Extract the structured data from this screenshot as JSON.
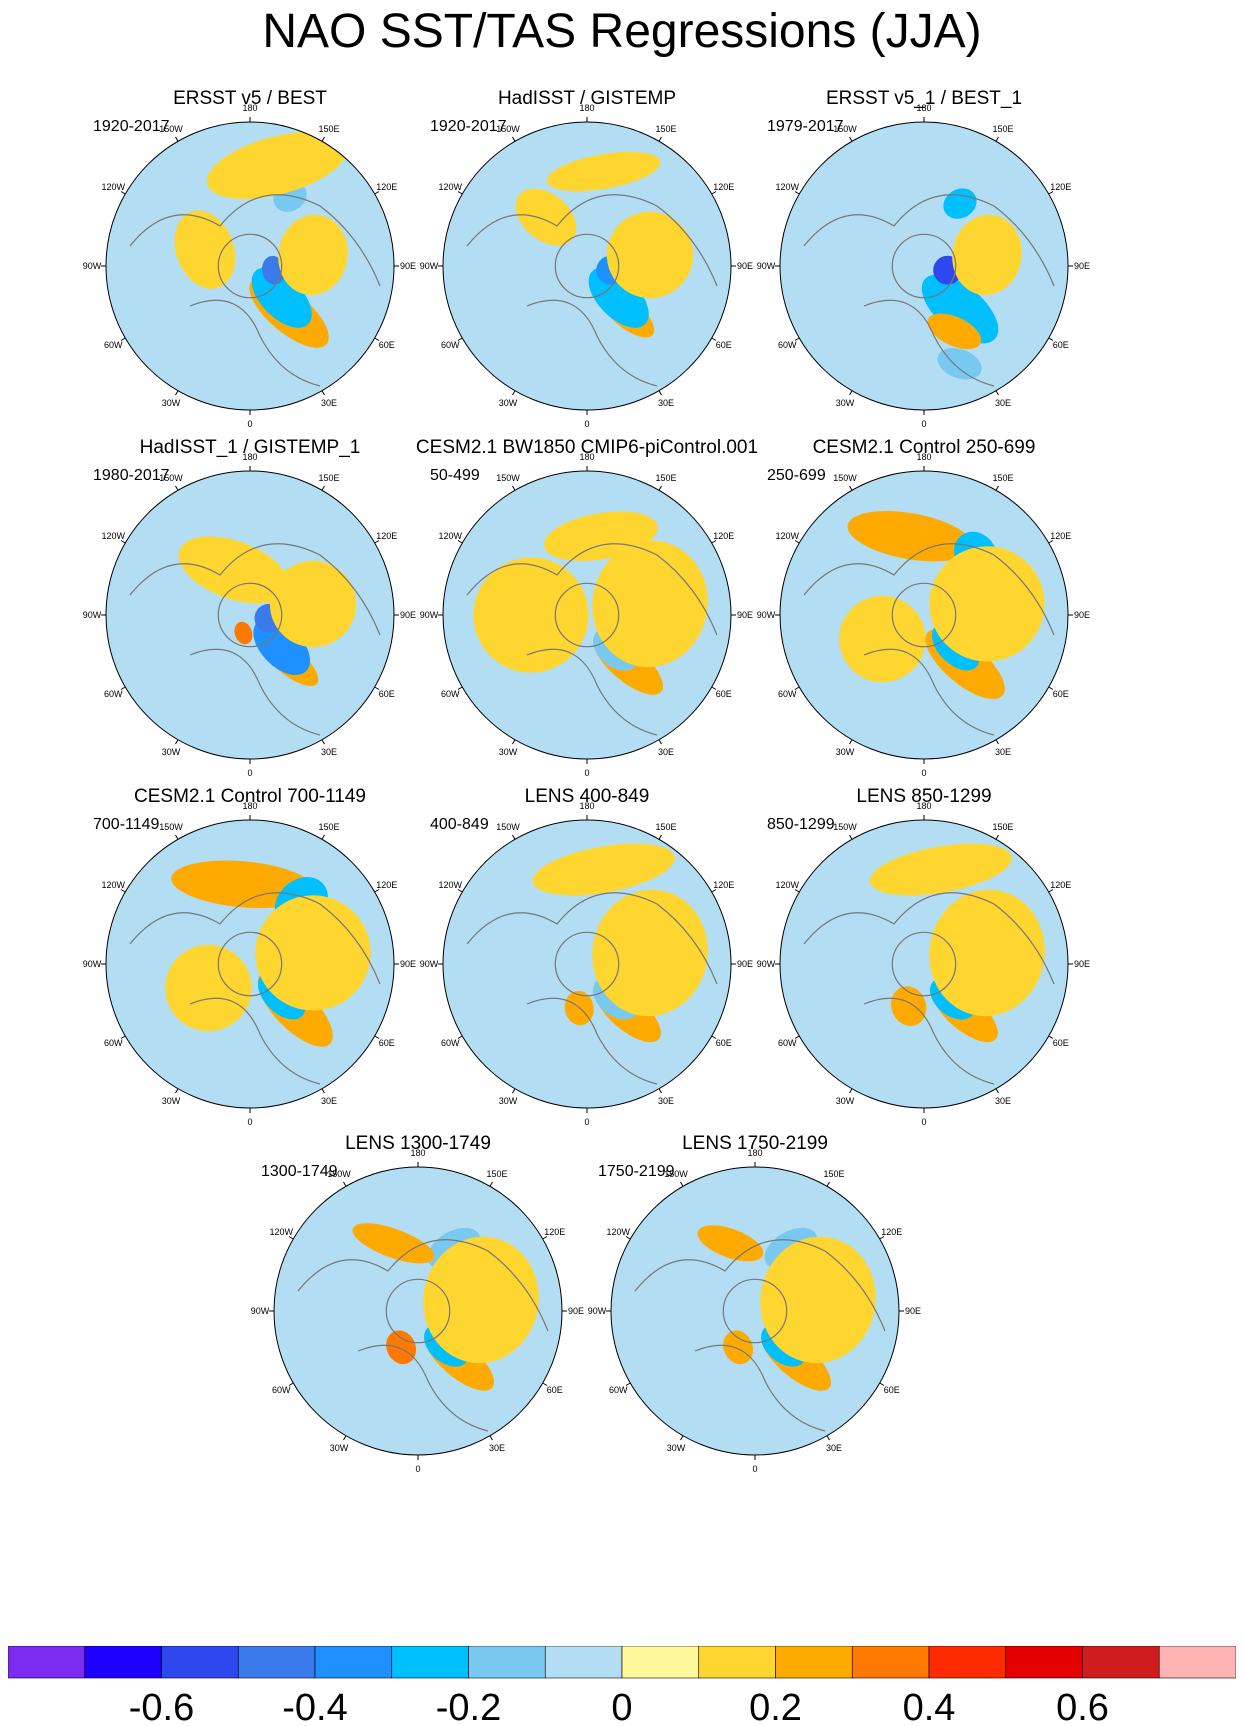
{
  "title": "NAO SST/TAS Regressions (JJA)",
  "chart_data": {
    "type": "heatmap",
    "projection": "north-polar-stereographic",
    "longitude_labels": [
      "180",
      "150E",
      "120E",
      "90E",
      "60E",
      "30E",
      "0",
      "30W",
      "60W",
      "90W",
      "120W",
      "150W"
    ],
    "panels": [
      {
        "title": "ERSST v5 / BEST",
        "period": "1920-2017",
        "features": [
          {
            "lon": -40,
            "lat": 52,
            "value": 0.2,
            "rx": 0.17,
            "ry": 0.07
          },
          {
            "lon": -45,
            "lat": 62,
            "value": -0.3,
            "rx": 0.13,
            "ry": 0.07
          },
          {
            "lon": -80,
            "lat": 75,
            "value": -0.5,
            "rx": 0.05,
            "ry": 0.04
          },
          {
            "lon": -150,
            "lat": 40,
            "value": -0.2,
            "rx": 0.06,
            "ry": 0.05
          },
          {
            "lon": -165,
            "lat": 25,
            "value": 0.1,
            "rx": 0.25,
            "ry": 0.1
          },
          {
            "lon": -100,
            "lat": 50,
            "value": 0.1,
            "rx": 0.14,
            "ry": 0.12
          },
          {
            "lon": 110,
            "lat": 60,
            "value": 0.1,
            "rx": 0.14,
            "ry": 0.1
          }
        ]
      },
      {
        "title": "HadISST / GISTEMP",
        "period": "1920-2017",
        "features": [
          {
            "lon": -40,
            "lat": 52,
            "value": 0.2,
            "rx": 0.12,
            "ry": 0.05
          },
          {
            "lon": -45,
            "lat": 62,
            "value": -0.3,
            "rx": 0.13,
            "ry": 0.07
          },
          {
            "lon": -80,
            "lat": 75,
            "value": -0.4,
            "rx": 0.05,
            "ry": 0.05
          },
          {
            "lon": -100,
            "lat": 50,
            "value": 0.1,
            "rx": 0.15,
            "ry": 0.15
          },
          {
            "lon": -170,
            "lat": 30,
            "value": 0.1,
            "rx": 0.2,
            "ry": 0.06
          },
          {
            "lon": 140,
            "lat": 50,
            "value": 0.1,
            "rx": 0.12,
            "ry": 0.08
          }
        ]
      },
      {
        "title": "ERSST v5_1 / BEST_1",
        "period": "1979-2017",
        "features": [
          {
            "lon": -40,
            "lat": 55,
            "value": -0.3,
            "rx": 0.16,
            "ry": 0.08
          },
          {
            "lon": -25,
            "lat": 45,
            "value": 0.2,
            "rx": 0.1,
            "ry": 0.05
          },
          {
            "lon": -150,
            "lat": 45,
            "value": -0.3,
            "rx": 0.06,
            "ry": 0.05
          },
          {
            "lon": -80,
            "lat": 75,
            "value": -0.6,
            "rx": 0.05,
            "ry": 0.05
          },
          {
            "lon": -20,
            "lat": 25,
            "value": -0.2,
            "rx": 0.08,
            "ry": 0.05
          },
          {
            "lon": -100,
            "lat": 50,
            "value": 0.1,
            "rx": 0.14,
            "ry": 0.12
          }
        ]
      },
      {
        "title": "HadISST_1 / GISTEMP_1",
        "period": "1980-2017",
        "features": [
          {
            "lon": -40,
            "lat": 55,
            "value": 0.2,
            "rx": 0.14,
            "ry": 0.05
          },
          {
            "lon": -45,
            "lat": 62,
            "value": -0.4,
            "rx": 0.12,
            "ry": 0.07
          },
          {
            "lon": -80,
            "lat": 78,
            "value": -0.5,
            "rx": 0.05,
            "ry": 0.05
          },
          {
            "lon": 20,
            "lat": 78,
            "value": 0.3,
            "rx": 0.03,
            "ry": 0.04
          },
          {
            "lon": -100,
            "lat": 50,
            "value": 0.1,
            "rx": 0.15,
            "ry": 0.15
          },
          {
            "lon": 160,
            "lat": 60,
            "value": 0.1,
            "rx": 0.2,
            "ry": 0.1
          }
        ]
      },
      {
        "title": "CESM2.1 BW1850 CMIP6-piControl.001",
        "period": "50-499",
        "features": [
          {
            "lon": -40,
            "lat": 50,
            "value": 0.2,
            "rx": 0.15,
            "ry": 0.06
          },
          {
            "lon": -40,
            "lat": 62,
            "value": -0.2,
            "rx": 0.09,
            "ry": 0.06
          },
          {
            "lon": -100,
            "lat": 50,
            "value": 0.1,
            "rx": 0.22,
            "ry": 0.2
          },
          {
            "lon": 90,
            "lat": 55,
            "value": 0.1,
            "rx": 0.2,
            "ry": 0.2
          },
          {
            "lon": -170,
            "lat": 40,
            "value": 0.1,
            "rx": 0.2,
            "ry": 0.08
          }
        ]
      },
      {
        "title": "CESM2.1 Control 250-699",
        "period": "250-699",
        "features": [
          {
            "lon": -40,
            "lat": 50,
            "value": 0.2,
            "rx": 0.17,
            "ry": 0.07
          },
          {
            "lon": -45,
            "lat": 62,
            "value": -0.3,
            "rx": 0.1,
            "ry": 0.06
          },
          {
            "lon": 170,
            "lat": 40,
            "value": 0.2,
            "rx": 0.22,
            "ry": 0.08
          },
          {
            "lon": -140,
            "lat": 40,
            "value": -0.3,
            "rx": 0.07,
            "ry": 0.08
          },
          {
            "lon": -100,
            "lat": 50,
            "value": 0.1,
            "rx": 0.2,
            "ry": 0.2
          },
          {
            "lon": 60,
            "lat": 60,
            "value": 0.1,
            "rx": 0.15,
            "ry": 0.15
          }
        ]
      },
      {
        "title": "CESM2.1 Control 700-1149",
        "period": "700-1149",
        "features": [
          {
            "lon": -45,
            "lat": 50,
            "value": 0.2,
            "rx": 0.17,
            "ry": 0.07
          },
          {
            "lon": -45,
            "lat": 62,
            "value": -0.3,
            "rx": 0.1,
            "ry": 0.06
          },
          {
            "lon": 175,
            "lat": 40,
            "value": 0.2,
            "rx": 0.25,
            "ry": 0.08
          },
          {
            "lon": -140,
            "lat": 40,
            "value": -0.3,
            "rx": 0.1,
            "ry": 0.08
          },
          {
            "lon": -100,
            "lat": 50,
            "value": 0.1,
            "rx": 0.2,
            "ry": 0.2
          },
          {
            "lon": 60,
            "lat": 60,
            "value": 0.1,
            "rx": 0.15,
            "ry": 0.15
          }
        ]
      },
      {
        "title": "LENS 400-849",
        "period": "400-849",
        "features": [
          {
            "lon": -40,
            "lat": 50,
            "value": 0.2,
            "rx": 0.14,
            "ry": 0.06
          },
          {
            "lon": -40,
            "lat": 62,
            "value": -0.2,
            "rx": 0.09,
            "ry": 0.06
          },
          {
            "lon": 10,
            "lat": 62,
            "value": 0.2,
            "rx": 0.05,
            "ry": 0.06
          },
          {
            "lon": -100,
            "lat": 50,
            "value": 0.1,
            "rx": 0.22,
            "ry": 0.2
          },
          {
            "lon": -170,
            "lat": 30,
            "value": 0.1,
            "rx": 0.25,
            "ry": 0.08
          }
        ]
      },
      {
        "title": "LENS 850-1299",
        "period": "850-1299",
        "features": [
          {
            "lon": -40,
            "lat": 50,
            "value": 0.2,
            "rx": 0.14,
            "ry": 0.06
          },
          {
            "lon": -40,
            "lat": 62,
            "value": -0.3,
            "rx": 0.09,
            "ry": 0.06
          },
          {
            "lon": 20,
            "lat": 62,
            "value": 0.2,
            "rx": 0.06,
            "ry": 0.07
          },
          {
            "lon": -100,
            "lat": 50,
            "value": 0.1,
            "rx": 0.22,
            "ry": 0.2
          },
          {
            "lon": -170,
            "lat": 30,
            "value": 0.1,
            "rx": 0.25,
            "ry": 0.08
          }
        ]
      },
      {
        "title": "LENS 1300-1749",
        "period": "1300-1749",
        "features": [
          {
            "lon": -40,
            "lat": 50,
            "value": 0.2,
            "rx": 0.15,
            "ry": 0.06
          },
          {
            "lon": -40,
            "lat": 62,
            "value": -0.3,
            "rx": 0.09,
            "ry": 0.06
          },
          {
            "lon": 25,
            "lat": 65,
            "value": 0.3,
            "rx": 0.05,
            "ry": 0.06
          },
          {
            "lon": -150,
            "lat": 45,
            "value": -0.2,
            "rx": 0.1,
            "ry": 0.06
          },
          {
            "lon": 160,
            "lat": 45,
            "value": 0.2,
            "rx": 0.15,
            "ry": 0.05
          },
          {
            "lon": -100,
            "lat": 50,
            "value": 0.1,
            "rx": 0.22,
            "ry": 0.2
          }
        ]
      },
      {
        "title": "LENS 1750-2199",
        "period": "1750-2199",
        "features": [
          {
            "lon": -40,
            "lat": 50,
            "value": 0.2,
            "rx": 0.15,
            "ry": 0.06
          },
          {
            "lon": -40,
            "lat": 62,
            "value": -0.3,
            "rx": 0.09,
            "ry": 0.06
          },
          {
            "lon": 25,
            "lat": 65,
            "value": 0.2,
            "rx": 0.05,
            "ry": 0.06
          },
          {
            "lon": -150,
            "lat": 45,
            "value": -0.2,
            "rx": 0.1,
            "ry": 0.06
          },
          {
            "lon": 160,
            "lat": 45,
            "value": 0.2,
            "rx": 0.12,
            "ry": 0.05
          },
          {
            "lon": -100,
            "lat": 50,
            "value": 0.1,
            "rx": 0.22,
            "ry": 0.2
          }
        ]
      }
    ],
    "colorbar": {
      "levels": [
        -0.7,
        -0.6,
        -0.5,
        -0.4,
        -0.3,
        -0.2,
        -0.1,
        0,
        0.1,
        0.2,
        0.3,
        0.4,
        0.5,
        0.6,
        0.7
      ],
      "colors": [
        "#7B2CF0",
        "#1E00FF",
        "#2C48EE",
        "#3A7AEA",
        "#1E90FF",
        "#00BFFF",
        "#79C8F0",
        "#B3DDF2",
        "#FFF799",
        "#FFD530",
        "#FFAA00",
        "#FF7800",
        "#FF2A00",
        "#E50000",
        "#D01C1C",
        "#FFB4B4"
      ],
      "tick_labels": [
        "-0.6",
        "-0.4",
        "-0.2",
        "0",
        "0.2",
        "0.4",
        "0.6"
      ],
      "tick_values": [
        -0.6,
        -0.4,
        -0.2,
        0,
        0.2,
        0.4,
        0.6
      ]
    }
  }
}
